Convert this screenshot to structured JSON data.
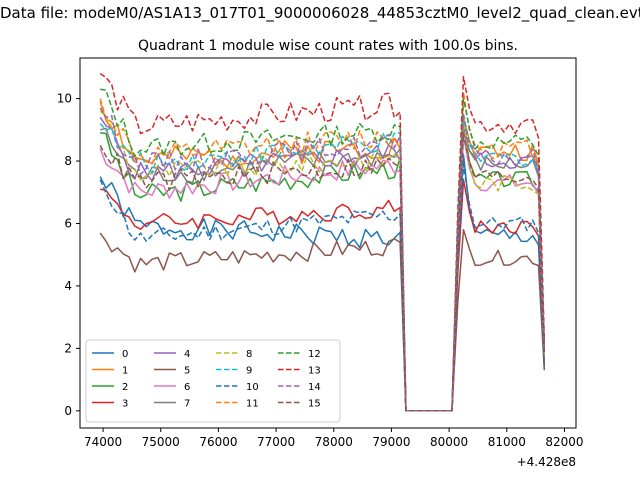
{
  "figure": {
    "suptitle": "Data file: modeM0/AS1A13_017T01_9000006028_44853cztM0_level2_quad_clean.evt"
  },
  "chart_data": {
    "type": "line",
    "title": "Quadrant 1 module wise count rates with 100.0s bins.",
    "xlabel": "",
    "ylabel": "",
    "x_offset_label": "+4.428e8",
    "xlim": [
      73600,
      82200
    ],
    "ylim": [
      -0.55,
      11.3
    ],
    "xticks": [
      74000,
      75000,
      76000,
      77000,
      78000,
      79000,
      80000,
      81000,
      82000
    ],
    "yticks": [
      0,
      2,
      4,
      6,
      8,
      10
    ],
    "grid": false,
    "legend": {
      "placement": "lower-left",
      "columns": 4
    },
    "colors": [
      "#1f77b4",
      "#ff7f0e",
      "#2ca02c",
      "#d62728",
      "#9467bd",
      "#8c564b",
      "#e377c2",
      "#7f7f7f",
      "#bcbd22",
      "#17becf"
    ],
    "segments": [
      {
        "x_start": 73950,
        "x_end": 79150,
        "step": 100
      },
      {
        "x_start": 80150,
        "x_end": 81650,
        "step": 100
      }
    ],
    "gap_value": 0.0,
    "series": [
      {
        "name": "0",
        "style": "solid",
        "start": 7.5,
        "base": 5.9,
        "end": 5.5,
        "amp": 0.35,
        "seg2_start": 8.2,
        "seg2_base": 5.6,
        "seed": 1
      },
      {
        "name": "1",
        "style": "solid",
        "start": 9.9,
        "base": 8.0,
        "end": 8.5,
        "amp": 0.4,
        "seg2_start": 9.4,
        "seg2_base": 8.3,
        "seed": 2
      },
      {
        "name": "2",
        "style": "solid",
        "start": 8.9,
        "base": 6.9,
        "end": 7.8,
        "amp": 0.35,
        "seg2_start": 9.2,
        "seg2_base": 7.4,
        "seed": 3
      },
      {
        "name": "3",
        "style": "solid",
        "start": 7.1,
        "base": 6.0,
        "end": 6.5,
        "amp": 0.3,
        "seg2_start": 7.4,
        "seg2_base": 5.9,
        "seed": 4
      },
      {
        "name": "4",
        "style": "solid",
        "start": 9.4,
        "base": 7.6,
        "end": 8.3,
        "amp": 0.35,
        "seg2_start": 9.0,
        "seg2_base": 8.0,
        "seed": 5
      },
      {
        "name": "5",
        "style": "solid",
        "start": 5.7,
        "base": 4.7,
        "end": 5.3,
        "amp": 0.3,
        "seg2_start": 5.8,
        "seg2_base": 4.9,
        "seed": 6
      },
      {
        "name": "6",
        "style": "solid",
        "start": 8.4,
        "base": 7.0,
        "end": 7.9,
        "amp": 0.35,
        "seg2_start": 8.8,
        "seg2_base": 7.3,
        "seed": 7
      },
      {
        "name": "7",
        "style": "solid",
        "start": 9.0,
        "base": 7.5,
        "end": 8.2,
        "amp": 0.35,
        "seg2_start": 9.2,
        "seg2_base": 7.9,
        "seed": 8
      },
      {
        "name": "8",
        "style": "dashed",
        "start": 9.6,
        "base": 7.6,
        "end": 8.1,
        "amp": 0.35,
        "seg2_start": 9.3,
        "seg2_base": 7.3,
        "seed": 9
      },
      {
        "name": "9",
        "style": "dashed",
        "start": 9.2,
        "base": 7.9,
        "end": 8.6,
        "amp": 0.35,
        "seg2_start": 9.4,
        "seg2_base": 8.1,
        "seed": 10
      },
      {
        "name": "10",
        "style": "dashed",
        "start": 7.4,
        "base": 5.5,
        "end": 6.3,
        "amp": 0.3,
        "seg2_start": 7.9,
        "seg2_base": 6.0,
        "seed": 11
      },
      {
        "name": "11",
        "style": "dashed",
        "start": 10.0,
        "base": 8.1,
        "end": 8.8,
        "amp": 0.4,
        "seg2_start": 10.2,
        "seg2_base": 8.4,
        "seed": 12
      },
      {
        "name": "12",
        "style": "dashed",
        "start": 10.3,
        "base": 8.4,
        "end": 9.0,
        "amp": 0.35,
        "seg2_start": 10.0,
        "seg2_base": 8.6,
        "seed": 13
      },
      {
        "name": "13",
        "style": "dashed",
        "start": 10.8,
        "base": 9.1,
        "end": 9.8,
        "amp": 0.4,
        "seg2_start": 10.7,
        "seg2_base": 9.2,
        "seed": 14
      },
      {
        "name": "14",
        "style": "dashed",
        "start": 9.7,
        "base": 7.9,
        "end": 8.6,
        "amp": 0.35,
        "seg2_start": 9.5,
        "seg2_base": 8.1,
        "seed": 15
      },
      {
        "name": "15",
        "style": "dashed",
        "start": 8.5,
        "base": 7.3,
        "end": 7.9,
        "amp": 0.35,
        "seg2_start": 8.9,
        "seg2_base": 7.5,
        "seed": 16
      }
    ]
  }
}
